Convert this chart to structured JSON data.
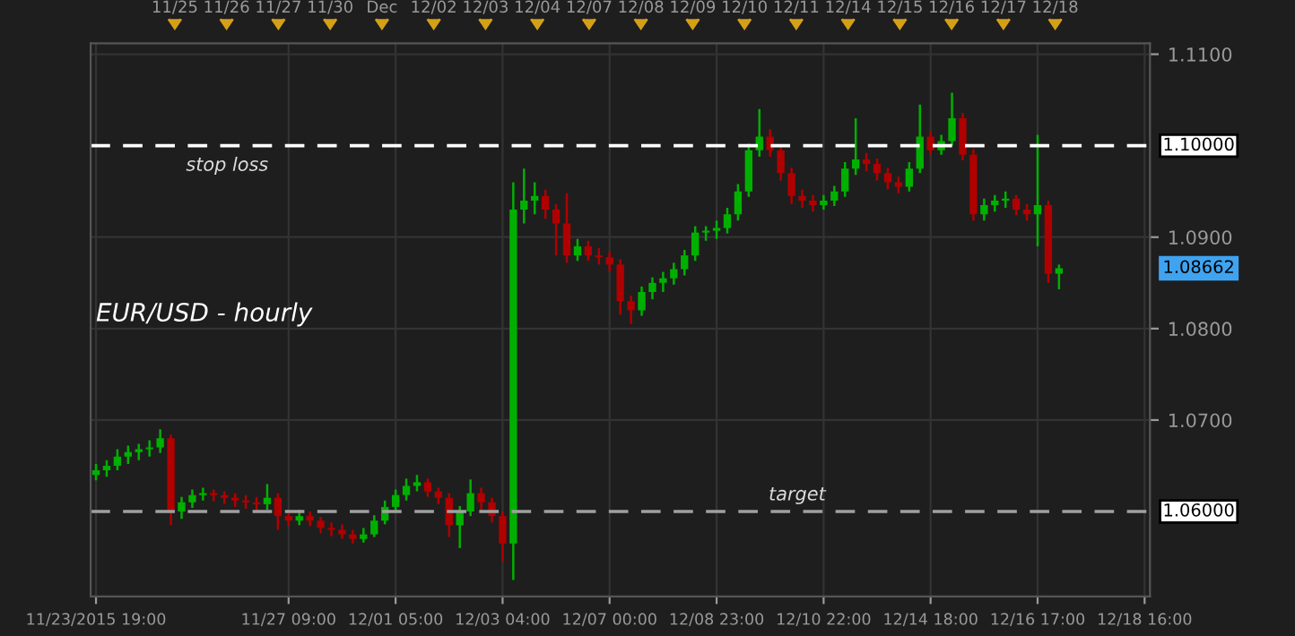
{
  "chart_data": {
    "type": "candlestick",
    "title": "EUR/USD - hourly",
    "categories": [
      "11/23/2015 19:00",
      null,
      null,
      null,
      null,
      null,
      null,
      null,
      null,
      null,
      null,
      null,
      null,
      null,
      null,
      null,
      null,
      null,
      "11/27 09:00",
      null,
      null,
      null,
      null,
      null,
      null,
      null,
      null,
      null,
      "12/01 05:00",
      null,
      null,
      null,
      null,
      null,
      null,
      null,
      null,
      null,
      "12/03 04:00",
      null,
      null,
      null,
      null,
      null,
      null,
      null,
      null,
      null,
      "12/07 00:00",
      null,
      null,
      null,
      null,
      null,
      null,
      null,
      null,
      null,
      "12/08 23:00",
      null,
      null,
      null,
      null,
      null,
      null,
      null,
      null,
      null,
      "12/10 22:00",
      null,
      null,
      null,
      null,
      null,
      null,
      null,
      null,
      null,
      "12/14 18:00",
      null,
      null,
      null,
      null,
      null,
      null,
      null,
      null,
      null,
      "12/16 17:00",
      null,
      null,
      null,
      null,
      null,
      null,
      null,
      null,
      null,
      "12/18 16:00"
    ],
    "ohlc": [
      [
        1.064,
        1.0652,
        1.0634,
        1.0645
      ],
      [
        1.0645,
        1.0656,
        1.0638,
        1.065
      ],
      [
        1.065,
        1.0668,
        1.0645,
        1.066
      ],
      [
        1.066,
        1.0672,
        1.0652,
        1.0665
      ],
      [
        1.0665,
        1.0674,
        1.0656,
        1.0668
      ],
      [
        1.0668,
        1.0678,
        1.066,
        1.067
      ],
      [
        1.067,
        1.069,
        1.0664,
        1.068
      ],
      [
        1.068,
        1.0684,
        1.0585,
        1.06
      ],
      [
        1.06,
        1.0616,
        1.0592,
        1.061
      ],
      [
        1.061,
        1.0624,
        1.0604,
        1.0618
      ],
      [
        1.0618,
        1.0626,
        1.0612,
        1.062
      ],
      [
        1.062,
        1.0624,
        1.0611,
        1.0618
      ],
      [
        1.0618,
        1.0622,
        1.0608,
        1.0615
      ],
      [
        1.0615,
        1.062,
        1.0605,
        1.0612
      ],
      [
        1.0612,
        1.0618,
        1.0603,
        1.061
      ],
      [
        1.061,
        1.0616,
        1.06,
        1.0608
      ],
      [
        1.0608,
        1.063,
        1.0602,
        1.0615
      ],
      [
        1.0615,
        1.062,
        1.058,
        1.0595
      ],
      [
        1.0595,
        1.06,
        1.0584,
        1.059
      ],
      [
        1.059,
        1.0602,
        1.0585,
        1.0595
      ],
      [
        1.0595,
        1.06,
        1.0584,
        1.059
      ],
      [
        1.059,
        1.0594,
        1.0576,
        1.0582
      ],
      [
        1.0582,
        1.0588,
        1.0573,
        1.058
      ],
      [
        1.058,
        1.0586,
        1.057,
        1.0575
      ],
      [
        1.0575,
        1.058,
        1.0565,
        1.057
      ],
      [
        1.057,
        1.0582,
        1.0566,
        1.0575
      ],
      [
        1.0575,
        1.0596,
        1.0572,
        1.059
      ],
      [
        1.059,
        1.0612,
        1.0586,
        1.0605
      ],
      [
        1.0605,
        1.0624,
        1.06,
        1.0618
      ],
      [
        1.0618,
        1.0636,
        1.0612,
        1.0628
      ],
      [
        1.0628,
        1.064,
        1.0622,
        1.0632
      ],
      [
        1.0632,
        1.0636,
        1.0616,
        1.0622
      ],
      [
        1.0622,
        1.0626,
        1.0608,
        1.0615
      ],
      [
        1.0615,
        1.062,
        1.0572,
        1.0585
      ],
      [
        1.0585,
        1.0606,
        1.056,
        1.06
      ],
      [
        1.06,
        1.0635,
        1.0595,
        1.062
      ],
      [
        1.062,
        1.0626,
        1.0602,
        1.061
      ],
      [
        1.061,
        1.0615,
        1.0588,
        1.0595
      ],
      [
        1.0595,
        1.06,
        1.0545,
        1.0565
      ],
      [
        1.0565,
        1.096,
        1.0525,
        1.093
      ],
      [
        1.093,
        1.0975,
        1.0915,
        1.094
      ],
      [
        1.094,
        1.096,
        1.0925,
        1.0945
      ],
      [
        1.0945,
        1.0952,
        1.092,
        1.093
      ],
      [
        1.093,
        1.0936,
        1.088,
        1.0915
      ],
      [
        1.0915,
        1.0948,
        1.0872,
        1.088
      ],
      [
        1.088,
        1.0898,
        1.0874,
        1.089
      ],
      [
        1.089,
        1.0896,
        1.0874,
        1.088
      ],
      [
        1.088,
        1.0888,
        1.087,
        1.0878
      ],
      [
        1.0878,
        1.0884,
        1.0862,
        1.087
      ],
      [
        1.087,
        1.0876,
        1.0815,
        1.083
      ],
      [
        1.083,
        1.0836,
        1.0805,
        1.082
      ],
      [
        1.082,
        1.0846,
        1.0814,
        1.084
      ],
      [
        1.084,
        1.0856,
        1.0832,
        1.085
      ],
      [
        1.085,
        1.0862,
        1.084,
        1.0855
      ],
      [
        1.0855,
        1.0872,
        1.0848,
        1.0865
      ],
      [
        1.0865,
        1.0886,
        1.0858,
        1.088
      ],
      [
        1.088,
        1.0912,
        1.0874,
        1.0905
      ],
      [
        1.0905,
        1.0912,
        1.0896,
        1.0907
      ],
      [
        1.0907,
        1.0918,
        1.0898,
        1.091
      ],
      [
        1.091,
        1.0932,
        1.0904,
        1.0925
      ],
      [
        1.0925,
        1.0958,
        1.0918,
        1.095
      ],
      [
        1.095,
        1.1002,
        1.0944,
        1.0995
      ],
      [
        1.0995,
        1.104,
        1.0988,
        1.101
      ],
      [
        1.101,
        1.1018,
        1.0988,
        1.0995
      ],
      [
        1.0995,
        1.1,
        1.0962,
        1.097
      ],
      [
        1.097,
        1.0976,
        1.0936,
        1.0945
      ],
      [
        1.0945,
        1.0952,
        1.0932,
        1.094
      ],
      [
        1.094,
        1.0946,
        1.0928,
        1.0935
      ],
      [
        1.0935,
        1.0946,
        1.093,
        1.094
      ],
      [
        1.094,
        1.0956,
        1.0934,
        1.095
      ],
      [
        1.095,
        1.0982,
        1.0944,
        1.0975
      ],
      [
        1.0975,
        1.103,
        1.0968,
        1.0985
      ],
      [
        1.0985,
        1.0992,
        1.0972,
        1.098
      ],
      [
        1.098,
        1.0986,
        1.0962,
        1.097
      ],
      [
        1.097,
        1.0976,
        1.0952,
        1.096
      ],
      [
        1.096,
        1.0966,
        1.0948,
        1.0955
      ],
      [
        1.0955,
        1.0982,
        1.095,
        1.0975
      ],
      [
        1.0975,
        1.1045,
        1.097,
        1.101
      ],
      [
        1.101,
        1.1016,
        1.099,
        1.0995
      ],
      [
        1.0995,
        1.1012,
        1.099,
        1.1005
      ],
      [
        1.1005,
        1.1058,
        1.1,
        1.103
      ],
      [
        1.103,
        1.1036,
        1.0984,
        1.099
      ],
      [
        1.099,
        1.0996,
        1.0918,
        1.0925
      ],
      [
        1.0925,
        1.0942,
        1.0918,
        1.0935
      ],
      [
        1.0935,
        1.0946,
        1.0928,
        1.094
      ],
      [
        1.094,
        1.095,
        1.0932,
        1.0942
      ],
      [
        1.0942,
        1.0946,
        1.0924,
        1.093
      ],
      [
        1.093,
        1.0936,
        1.0918,
        1.0925
      ],
      [
        1.0925,
        1.1012,
        1.089,
        1.0935
      ],
      [
        1.0935,
        1.094,
        1.085,
        1.086
      ],
      [
        1.086,
        1.087,
        1.0843,
        1.0866
      ],
      null,
      null,
      null,
      null,
      null,
      null,
      null,
      null
    ],
    "colors": [
      "#00b000",
      "#00b000",
      "#00b000",
      "#00b000",
      "#00b000",
      "#00b000",
      "#00b000",
      "#b00000",
      "#00b000",
      "#00b000",
      "#00b000",
      "#b00000",
      "#b00000",
      "#b00000",
      "#b00000",
      "#b00000",
      "#00b000",
      "#b00000",
      "#b00000",
      "#00b000",
      "#b00000",
      "#b00000",
      "#b00000",
      "#b00000",
      "#b00000",
      "#00b000",
      "#00b000",
      "#00b000",
      "#00b000",
      "#00b000",
      "#00b000",
      "#b00000",
      "#b00000",
      "#b00000",
      "#00b000",
      "#00b000",
      "#b00000",
      "#b00000",
      "#b00000",
      "#00b000",
      "#00b000",
      "#00b000",
      "#b00000",
      "#b00000",
      "#b00000",
      "#00b000",
      "#b00000",
      "#b00000",
      "#b00000",
      "#b00000",
      "#b00000",
      "#00b000",
      "#00b000",
      "#00b000",
      "#00b000",
      "#00b000",
      "#00b000",
      "#00b000",
      "#00b000",
      "#00b000",
      "#00b000",
      "#00b000",
      "#00b000",
      "#b00000",
      "#b00000",
      "#b00000",
      "#b00000",
      "#b00000",
      "#00b000",
      "#00b000",
      "#00b000",
      "#00b000",
      "#b00000",
      "#b00000",
      "#b00000",
      "#b00000",
      "#00b000",
      "#00b000",
      "#b00000",
      "#00b000",
      "#00b000",
      "#b00000",
      "#b00000",
      "#00b000",
      "#00b000",
      "#00b000",
      "#b00000",
      "#b00000",
      "#00b000",
      "#b00000",
      "#00b000",
      null,
      null,
      null,
      null,
      null,
      null,
      null,
      null
    ],
    "ylim": [
      1.0507,
      1.1112
    ],
    "yticks": [
      {
        "value": 1.11,
        "label": "1.1100"
      },
      {
        "value": 1.09,
        "label": "1.0900"
      },
      {
        "value": 1.08,
        "label": "1.0800"
      },
      {
        "value": 1.07,
        "label": "1.0700"
      }
    ],
    "ref_lines": [
      {
        "axis": "y",
        "value": 1.1,
        "label": "stop loss",
        "color": "#ffffff",
        "line_style": "dashed"
      },
      {
        "axis": "y",
        "value": 1.06,
        "label": "target",
        "color": "#a0a0a0",
        "line_style": "dashed"
      }
    ],
    "annotations": [
      "1.10000",
      "1.06000",
      "1.08662",
      "11/25",
      "11/26",
      "11/27",
      "11/30",
      "Dec",
      "12/02",
      "12/03",
      "12/04",
      "12/07",
      "12/08",
      "12/09",
      "12/10",
      "12/11",
      "12/14",
      "12/15",
      "12/16",
      "12/17",
      "12/18"
    ],
    "grid": true
  }
}
